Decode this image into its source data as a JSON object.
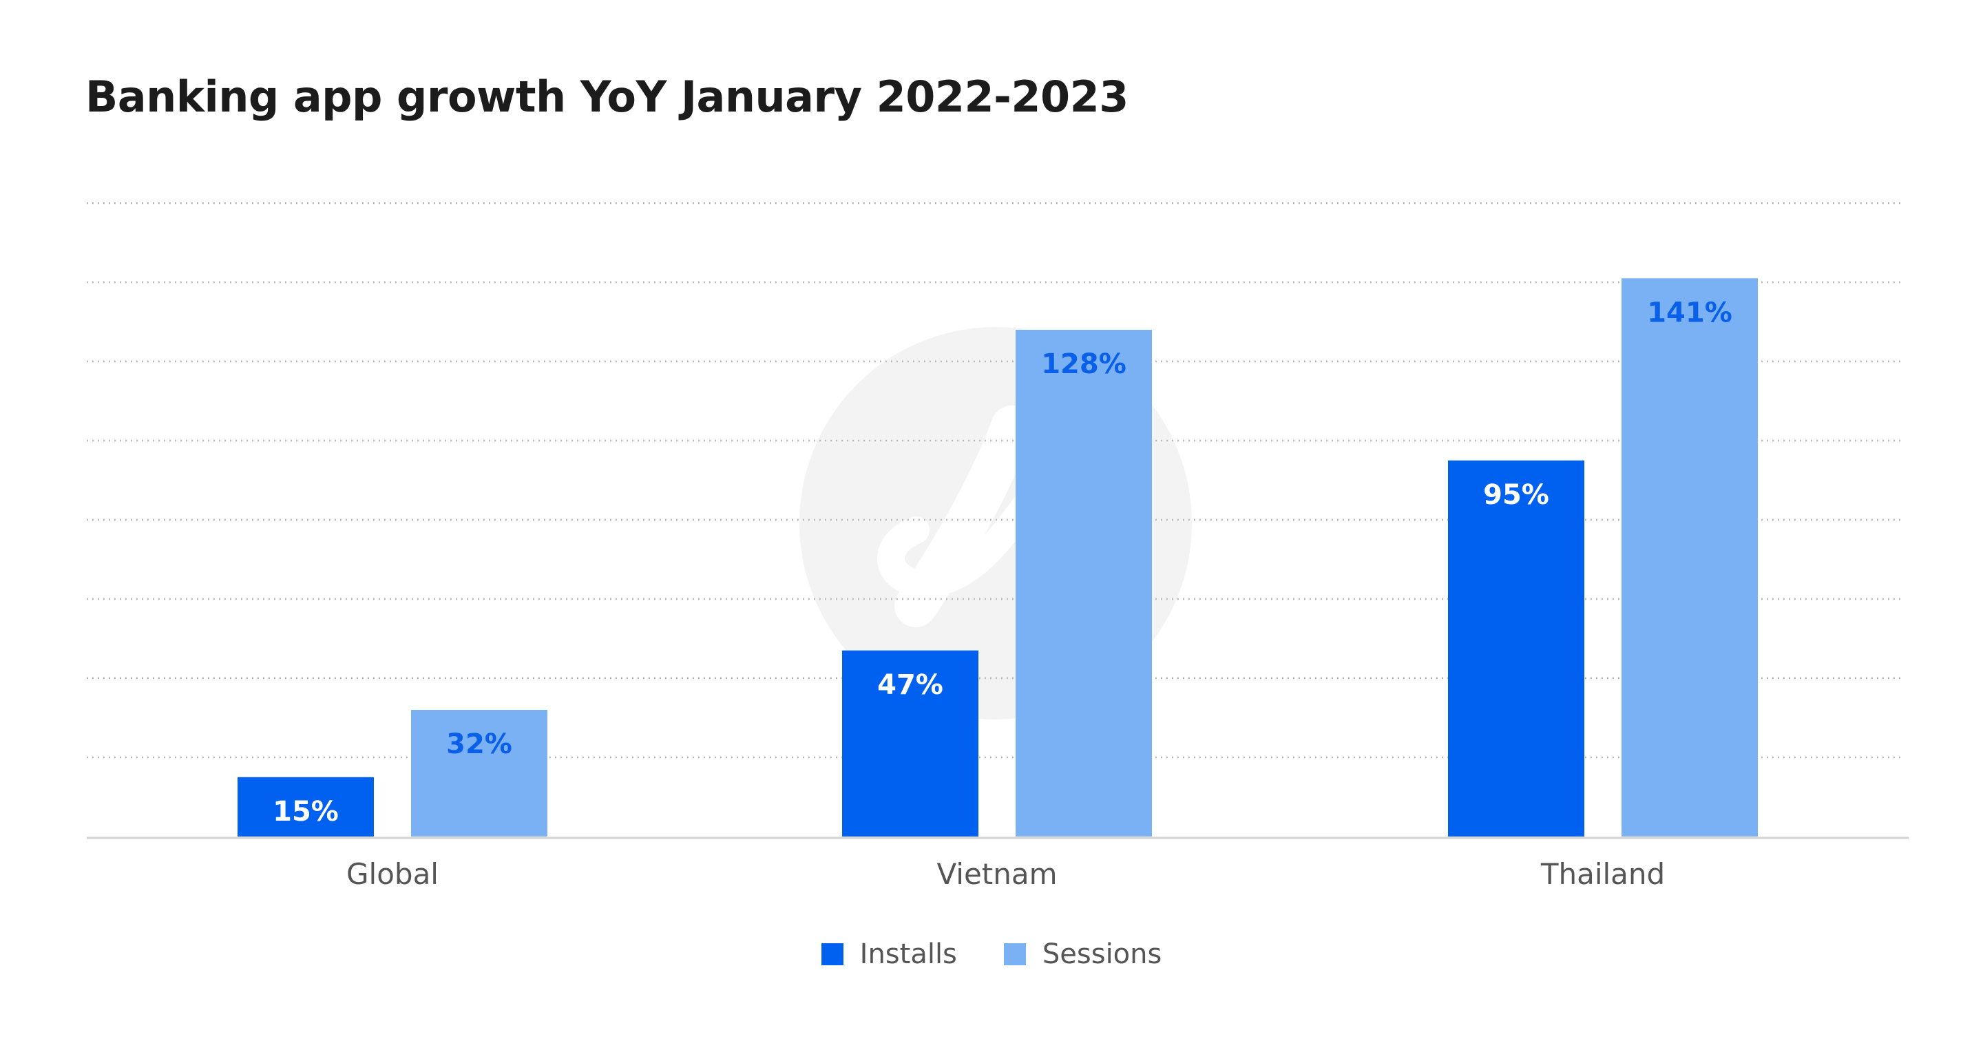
{
  "chart_data": {
    "type": "bar",
    "title": "Banking app growth YoY January 2022-2023",
    "xlabel": "",
    "ylabel": "",
    "ylim": [
      0,
      160
    ],
    "grid": true,
    "legend_position": "bottom-center",
    "categories": [
      "Global",
      "Vietnam",
      "Thailand"
    ],
    "series": [
      {
        "name": "Installs",
        "color": "#0060f0",
        "label_color": "#ffffff",
        "values": [
          15,
          47,
          95
        ],
        "labels": [
          "15%",
          "47%",
          "95%"
        ]
      },
      {
        "name": "Sessions",
        "color": "#7ab1f5",
        "label_color": "#0a5fe8",
        "values": [
          32,
          128,
          141
        ],
        "labels": [
          "32%",
          "128%",
          "141%"
        ]
      }
    ]
  }
}
